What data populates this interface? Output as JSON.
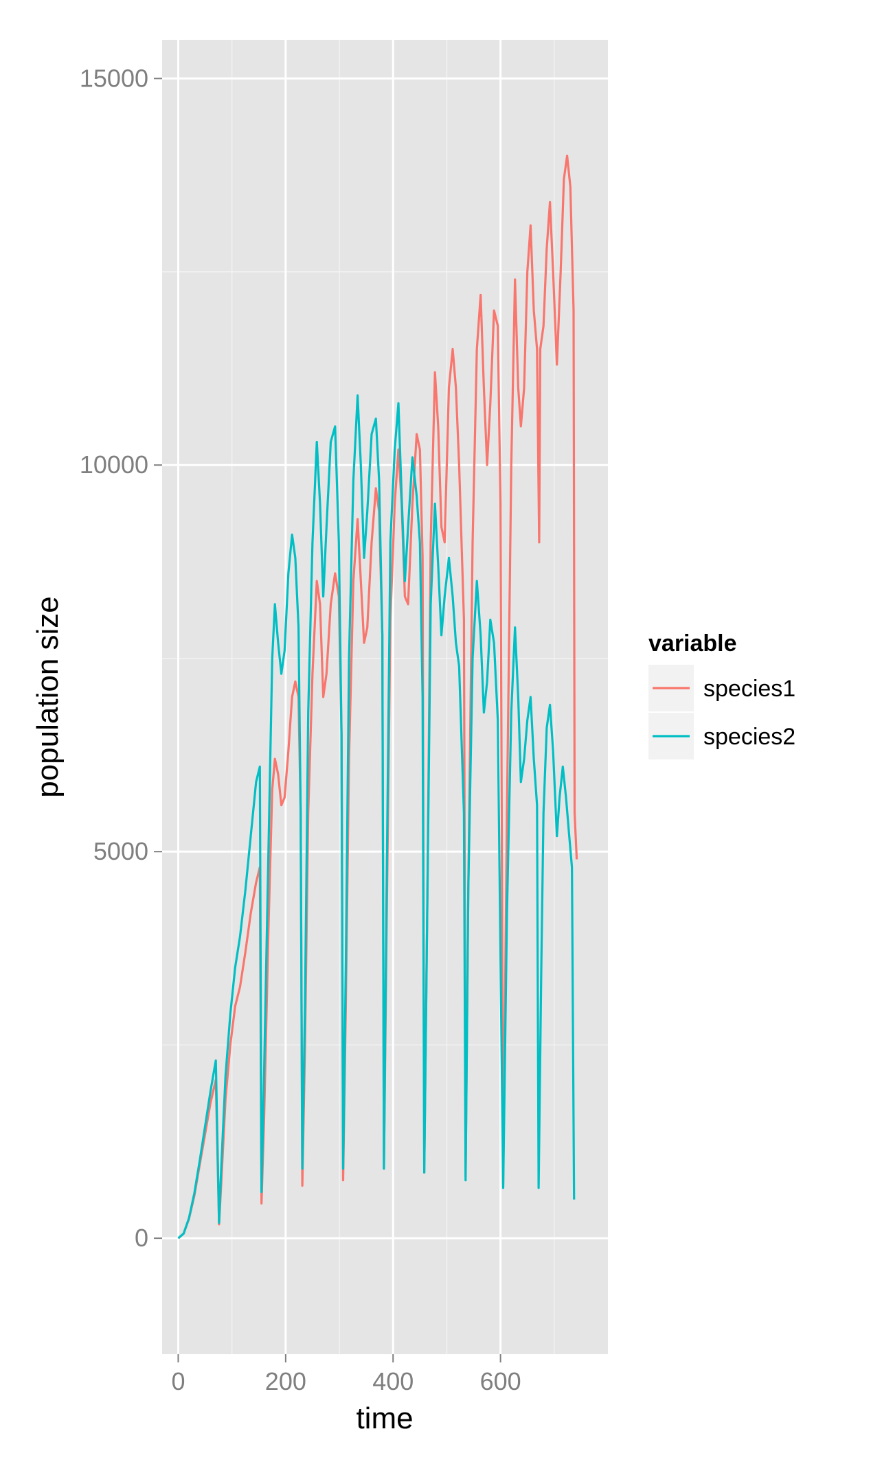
{
  "chart_data": {
    "type": "line",
    "xlabel": "time",
    "ylabel": "population size",
    "xlim": [
      -30,
      800
    ],
    "ylim": [
      -1500,
      15500
    ],
    "x_ticks": [
      0,
      200,
      400,
      600
    ],
    "x_tick_labels": [
      "0",
      "200",
      "400",
      "600"
    ],
    "y_ticks": [
      0,
      5000,
      10000,
      15000
    ],
    "y_tick_labels": [
      "0",
      "5000",
      "10000",
      "15000"
    ],
    "grid": true,
    "legend": {
      "title": "variable",
      "position": "right"
    },
    "series": [
      {
        "name": "species1",
        "color": "#F8766D",
        "points": [
          [
            0,
            0
          ],
          [
            10,
            60
          ],
          [
            20,
            250
          ],
          [
            30,
            550
          ],
          [
            40,
            950
          ],
          [
            50,
            1350
          ],
          [
            60,
            1750
          ],
          [
            70,
            2050
          ],
          [
            76,
            180
          ],
          [
            80,
            700
          ],
          [
            88,
            1800
          ],
          [
            97,
            2500
          ],
          [
            106,
            3000
          ],
          [
            115,
            3250
          ],
          [
            125,
            3700
          ],
          [
            135,
            4200
          ],
          [
            145,
            4600
          ],
          [
            152,
            4800
          ],
          [
            155,
            450
          ],
          [
            160,
            1600
          ],
          [
            168,
            4000
          ],
          [
            175,
            5800
          ],
          [
            180,
            6200
          ],
          [
            186,
            6000
          ],
          [
            192,
            5600
          ],
          [
            198,
            5700
          ],
          [
            205,
            6300
          ],
          [
            212,
            7000
          ],
          [
            218,
            7200
          ],
          [
            224,
            7000
          ],
          [
            228,
            5500
          ],
          [
            231,
            680
          ],
          [
            236,
            2500
          ],
          [
            242,
            5500
          ],
          [
            250,
            7300
          ],
          [
            258,
            8500
          ],
          [
            264,
            8200
          ],
          [
            270,
            7000
          ],
          [
            276,
            7300
          ],
          [
            284,
            8200
          ],
          [
            292,
            8600
          ],
          [
            299,
            8300
          ],
          [
            304,
            6500
          ],
          [
            307,
            750
          ],
          [
            312,
            3000
          ],
          [
            318,
            6200
          ],
          [
            326,
            8500
          ],
          [
            334,
            9300
          ],
          [
            340,
            8500
          ],
          [
            346,
            7700
          ],
          [
            352,
            7900
          ],
          [
            360,
            9000
          ],
          [
            368,
            9700
          ],
          [
            374,
            9400
          ],
          [
            380,
            7800
          ],
          [
            383,
            900
          ],
          [
            388,
            4000
          ],
          [
            395,
            8000
          ],
          [
            403,
            9500
          ],
          [
            410,
            10200
          ],
          [
            416,
            9500
          ],
          [
            422,
            8300
          ],
          [
            428,
            8200
          ],
          [
            436,
            9500
          ],
          [
            444,
            10400
          ],
          [
            450,
            10200
          ],
          [
            455,
            8800
          ],
          [
            458,
            850
          ],
          [
            464,
            4500
          ],
          [
            470,
            9000
          ],
          [
            478,
            11200
          ],
          [
            484,
            10500
          ],
          [
            490,
            9200
          ],
          [
            496,
            9000
          ],
          [
            504,
            11000
          ],
          [
            511,
            11500
          ],
          [
            517,
            11000
          ],
          [
            523,
            10000
          ],
          [
            532,
            8000
          ],
          [
            535,
            800
          ],
          [
            540,
            4500
          ],
          [
            548,
            9000
          ],
          [
            556,
            11500
          ],
          [
            563,
            12200
          ],
          [
            569,
            11000
          ],
          [
            575,
            10000
          ],
          [
            581,
            10800
          ],
          [
            588,
            12000
          ],
          [
            595,
            11800
          ],
          [
            600,
            9500
          ],
          [
            605,
            700
          ],
          [
            612,
            5500
          ],
          [
            620,
            10000
          ],
          [
            627,
            12400
          ],
          [
            633,
            11000
          ],
          [
            638,
            10500
          ],
          [
            644,
            11000
          ],
          [
            650,
            12500
          ],
          [
            656,
            13100
          ],
          [
            662,
            12000
          ],
          [
            668,
            11500
          ],
          [
            672,
            9000
          ],
          [
            674,
            11500
          ],
          [
            680,
            11800
          ],
          [
            686,
            12800
          ],
          [
            692,
            13400
          ],
          [
            698,
            12500
          ],
          [
            705,
            11300
          ],
          [
            712,
            12500
          ],
          [
            718,
            13700
          ],
          [
            724,
            14000
          ],
          [
            730,
            13600
          ],
          [
            736,
            12000
          ],
          [
            738,
            5500
          ],
          [
            742,
            4900
          ]
        ]
      },
      {
        "name": "species2",
        "color": "#00BFC4",
        "points": [
          [
            0,
            0
          ],
          [
            10,
            60
          ],
          [
            20,
            260
          ],
          [
            30,
            580
          ],
          [
            40,
            1000
          ],
          [
            50,
            1450
          ],
          [
            60,
            1900
          ],
          [
            70,
            2300
          ],
          [
            76,
            200
          ],
          [
            80,
            900
          ],
          [
            88,
            2100
          ],
          [
            97,
            2900
          ],
          [
            106,
            3500
          ],
          [
            115,
            3900
          ],
          [
            125,
            4500
          ],
          [
            135,
            5200
          ],
          [
            145,
            5900
          ],
          [
            152,
            6100
          ],
          [
            155,
            600
          ],
          [
            160,
            2200
          ],
          [
            168,
            5000
          ],
          [
            175,
            7500
          ],
          [
            180,
            8200
          ],
          [
            186,
            7700
          ],
          [
            192,
            7300
          ],
          [
            198,
            7600
          ],
          [
            205,
            8600
          ],
          [
            212,
            9100
          ],
          [
            218,
            8800
          ],
          [
            224,
            7900
          ],
          [
            228,
            5500
          ],
          [
            231,
            900
          ],
          [
            236,
            3000
          ],
          [
            242,
            6800
          ],
          [
            250,
            9000
          ],
          [
            258,
            10300
          ],
          [
            264,
            9500
          ],
          [
            270,
            8300
          ],
          [
            276,
            9200
          ],
          [
            284,
            10300
          ],
          [
            292,
            10500
          ],
          [
            299,
            9000
          ],
          [
            304,
            6500
          ],
          [
            307,
            900
          ],
          [
            312,
            3500
          ],
          [
            318,
            7500
          ],
          [
            326,
            9800
          ],
          [
            334,
            10900
          ],
          [
            340,
            10000
          ],
          [
            346,
            8800
          ],
          [
            352,
            9400
          ],
          [
            360,
            10400
          ],
          [
            368,
            10600
          ],
          [
            374,
            9800
          ],
          [
            380,
            7800
          ],
          [
            383,
            900
          ],
          [
            388,
            4500
          ],
          [
            395,
            9000
          ],
          [
            403,
            10200
          ],
          [
            410,
            10800
          ],
          [
            416,
            9600
          ],
          [
            422,
            8500
          ],
          [
            428,
            9200
          ],
          [
            436,
            10100
          ],
          [
            444,
            9600
          ],
          [
            450,
            9000
          ],
          [
            455,
            7000
          ],
          [
            458,
            850
          ],
          [
            464,
            4500
          ],
          [
            470,
            8200
          ],
          [
            478,
            9500
          ],
          [
            484,
            8700
          ],
          [
            490,
            7800
          ],
          [
            496,
            8300
          ],
          [
            504,
            8800
          ],
          [
            511,
            8300
          ],
          [
            517,
            7700
          ],
          [
            523,
            7400
          ],
          [
            532,
            5500
          ],
          [
            535,
            750
          ],
          [
            540,
            4500
          ],
          [
            548,
            7500
          ],
          [
            556,
            8500
          ],
          [
            563,
            7800
          ],
          [
            569,
            6800
          ],
          [
            575,
            7200
          ],
          [
            581,
            8000
          ],
          [
            588,
            7700
          ],
          [
            595,
            6700
          ],
          [
            605,
            650
          ],
          [
            612,
            4200
          ],
          [
            620,
            6800
          ],
          [
            627,
            7900
          ],
          [
            633,
            7000
          ],
          [
            638,
            5900
          ],
          [
            644,
            6200
          ],
          [
            650,
            6700
          ],
          [
            656,
            7000
          ],
          [
            662,
            6200
          ],
          [
            668,
            5600
          ],
          [
            671,
            650
          ],
          [
            676,
            3500
          ],
          [
            680,
            5500
          ],
          [
            686,
            6600
          ],
          [
            692,
            6900
          ],
          [
            698,
            6300
          ],
          [
            705,
            5200
          ],
          [
            710,
            5700
          ],
          [
            716,
            6100
          ],
          [
            722,
            5700
          ],
          [
            728,
            5200
          ],
          [
            733,
            4800
          ],
          [
            737,
            500
          ]
        ]
      }
    ]
  }
}
